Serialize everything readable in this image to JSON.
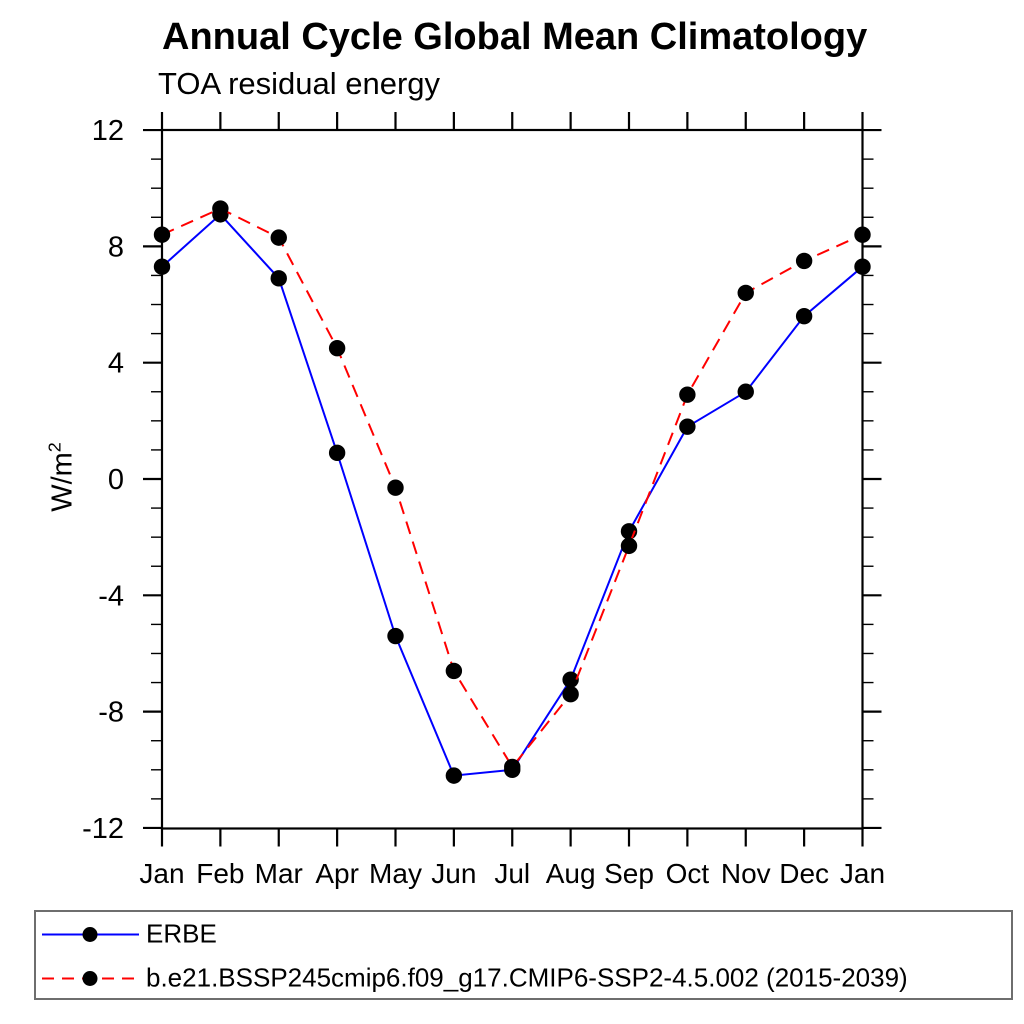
{
  "page": {
    "background_color": "#ffffff",
    "foreground_color": "#000000"
  },
  "chart_data": {
    "type": "line",
    "title": "Annual Cycle Global Mean Climatology",
    "subtitle": "TOA residual energy",
    "ylabel": {
      "base": "W/m",
      "exponent": "2"
    },
    "categories": [
      "Jan",
      "Feb",
      "Mar",
      "Apr",
      "May",
      "Jun",
      "Jul",
      "Aug",
      "Sep",
      "Oct",
      "Nov",
      "Dec",
      "Jan"
    ],
    "ylim": [
      -12,
      12
    ],
    "ytick_major": [
      -12,
      -8,
      -4,
      0,
      4,
      8,
      12
    ],
    "ytick_major_labels": [
      "-12",
      "-8",
      "-4",
      "0",
      "4",
      "8",
      "12"
    ],
    "ytick_minor_step": 1,
    "grid": false,
    "legend_position": "bottom-left-box",
    "series": [
      {
        "name": "ERBE",
        "color": "#0000ff",
        "style": "solid",
        "marker": "filled-circle",
        "marker_color": "#000000",
        "values": [
          7.3,
          9.1,
          6.9,
          0.9,
          -5.4,
          -10.2,
          -10.0,
          -6.9,
          -1.8,
          1.8,
          3.0,
          5.6,
          7.3
        ]
      },
      {
        "name": "b.e21.BSSP245cmip6.f09_g17.CMIP6-SSP2-4.5.002 (2015-2039)",
        "color": "#ff0000",
        "style": "dashed",
        "marker": "filled-circle",
        "marker_color": "#000000",
        "values": [
          8.4,
          9.3,
          8.3,
          4.5,
          -0.3,
          -6.6,
          -9.9,
          -7.4,
          -2.3,
          2.9,
          6.4,
          7.5,
          8.4
        ]
      }
    ]
  }
}
